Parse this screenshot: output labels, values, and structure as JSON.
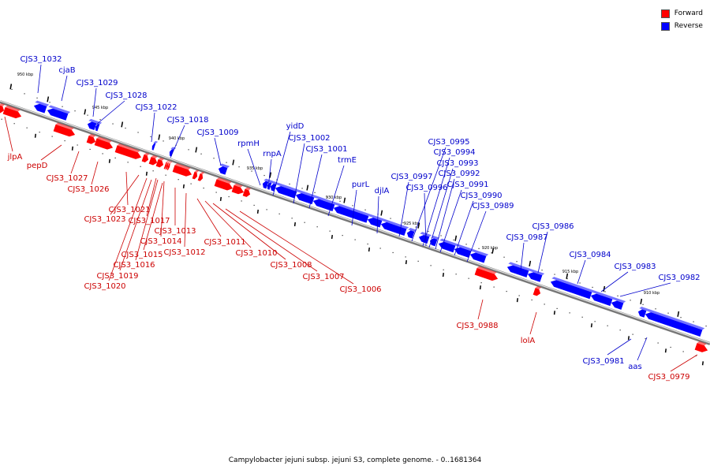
{
  "caption": "Campylobacter jejuni subsp. jejuni S3, complete genome. - 0..1681364",
  "legend": [
    {
      "label": "Forward",
      "color": "#ff0000"
    },
    {
      "label": "Reverse",
      "color": "#0000ff"
    }
  ],
  "colors": {
    "forward": "#ff0000",
    "reverse": "#0000ff",
    "forward_label": "#cc0000",
    "reverse_label": "#0000cc"
  },
  "ticks": [
    "950 kbp",
    "945 kbp",
    "940 kbp",
    "935 kbp",
    "930 kbp",
    "925 kbp",
    "920 kbp",
    "915 kbp",
    "910 kbp"
  ],
  "reverse_labels": [
    "CJS3_1032",
    "cjaB",
    "CJS3_1029",
    "CJS3_1028",
    "CJS3_1022",
    "CJS3_1018",
    "CJS3_1009",
    "rpmH",
    "rnpA",
    "yidD",
    "CJS3_1002",
    "CJS3_1001",
    "trmE",
    "purL",
    "djlA",
    "CJS3_0997",
    "CJS3_0995",
    "CJS3_0994",
    "CJS3_0993",
    "CJS3_0996",
    "CJS3_0992",
    "CJS3_0991",
    "CJS3_0990",
    "CJS3_0989",
    "CJS3_0986",
    "CJS3_0987",
    "CJS3_0984",
    "CJS3_0983",
    "CJS3_0982",
    "CJS3_0981",
    "aas"
  ],
  "forward_labels": [
    "jlpA",
    "pepD",
    "CJS3_1027",
    "CJS3_1026",
    "CJS3_1021",
    "CJS3_1023",
    "CJS3_1017",
    "CJS3_1013",
    "CJS3_1014",
    "CJS3_1012",
    "CJS3_1015",
    "CJS3_1016",
    "CJS3_1019",
    "CJS3_1020",
    "CJS3_1011",
    "CJS3_1010",
    "CJS3_1008",
    "CJS3_1007",
    "CJS3_1006",
    "CJS3_0988",
    "lolA",
    "CJS3_0979"
  ]
}
